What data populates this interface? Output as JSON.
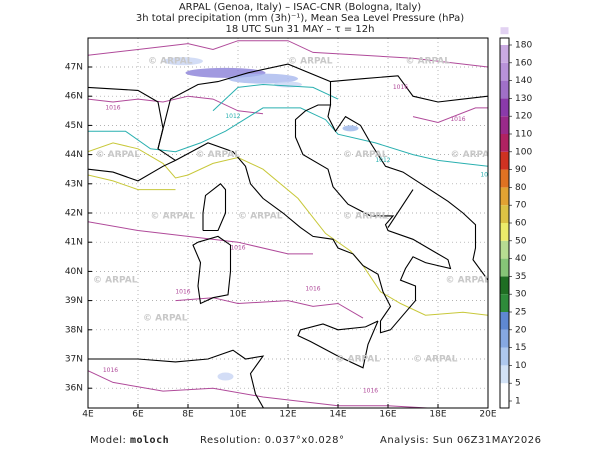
{
  "header": {
    "lines": [
      "ARPAL (Genoa, Italy)  –  ISAC-CNR (Bologna, Italy)",
      "3h total precipitation (mm (3h)⁻¹), Mean Sea Level Pressure (hPa)",
      "18 UTC Sun 31 MAY  –  τ = 12h"
    ]
  },
  "map": {
    "lon_ticks": [
      "4E",
      "6E",
      "8E",
      "10E",
      "12E",
      "14E",
      "16E",
      "18E",
      "20E"
    ],
    "lat_ticks": [
      "36N",
      "37N",
      "38N",
      "39N",
      "40N",
      "41N",
      "42N",
      "43N",
      "44N",
      "45N",
      "46N",
      "47N"
    ],
    "isobar_labels": [
      "1016",
      "1016",
      "1016",
      "1012",
      "1012",
      "1016",
      "1016",
      "1016",
      "1016",
      "1016",
      "1016"
    ],
    "watermarks": [
      "© ARPAL",
      "© ARPAL",
      "© ARPAL",
      "© ARPAL",
      "© ARPAL",
      "© ARPAL",
      "© ARPAL",
      "© ARPAL",
      "© ARPAL",
      "© ARPAL",
      "© ARPAL",
      "© ARPAL",
      "© ARPAL",
      "© ARPAL",
      "© ARPAL"
    ]
  },
  "colorbar": {
    "levels": [
      1,
      5,
      10,
      15,
      20,
      25,
      30,
      35,
      40,
      50,
      60,
      70,
      80,
      90,
      100,
      110,
      120,
      130,
      140,
      160,
      180
    ],
    "colors": [
      "#ffffff",
      "#d2e2f6",
      "#aec8ee",
      "#86a8e2",
      "#5f88d2",
      "#2e8b3a",
      "#1f6e23",
      "#86c477",
      "#b7dc92",
      "#ecec6a",
      "#dcc244",
      "#e2a232",
      "#e07222",
      "#cf3222",
      "#b02262",
      "#9a2a8a",
      "#8a3aaa",
      "#a070c8",
      "#b892d8",
      "#caaae2",
      "#e2d2f2"
    ]
  },
  "footer": {
    "model_label": "Model:",
    "model": "moloch",
    "resolution": "Resolution: 0.037°x0.028°",
    "analysis": "Analysis: Sun 06Z31MAY2026"
  }
}
